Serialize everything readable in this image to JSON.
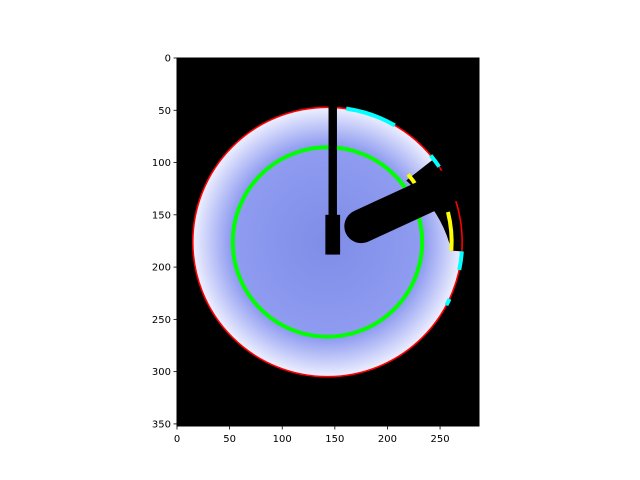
{
  "chart_data": {
    "type": "image",
    "title": "",
    "xlabel": "",
    "ylabel": "",
    "xlim": [
      0,
      287
    ],
    "ylim": [
      352,
      0
    ],
    "x_ticks": [
      0,
      50,
      100,
      150,
      200,
      250
    ],
    "y_ticks": [
      0,
      50,
      100,
      150,
      200,
      250,
      300,
      350
    ],
    "x_tick_labels": [
      "0",
      "50",
      "100",
      "150",
      "200",
      "250"
    ],
    "y_tick_labels": [
      "0",
      "50",
      "100",
      "150",
      "200",
      "250",
      "300",
      "350"
    ],
    "image_content": {
      "background": "black",
      "disk": {
        "cx": 143,
        "cy": 176,
        "r": 128,
        "fill": "#8f9cf0",
        "edge_fill": "#eef0ff"
      },
      "outer_circle": {
        "cx": 143,
        "cy": 176,
        "r": 128,
        "color": "#ff0000"
      },
      "inner_circle": {
        "cx": 143,
        "cy": 176,
        "r": 90,
        "color": "#00ff00"
      },
      "cutout_wedge": {
        "from_deg": -38,
        "to_deg": 4,
        "color": "#000000"
      },
      "cyan_arcs": [
        {
          "from_deg": -82,
          "to_deg": -60,
          "r": 128,
          "color": "#00ffff"
        },
        {
          "from_deg": -40,
          "to_deg": -34,
          "r": 128,
          "color": "#00ffff"
        },
        {
          "from_deg": 4,
          "to_deg": 12,
          "r": 128,
          "color": "#00ffff"
        },
        {
          "from_deg": 25,
          "to_deg": 28,
          "r": 128,
          "color": "#00ffff"
        }
      ],
      "yellow_arcs": [
        {
          "from_deg": -40,
          "to_deg": -22,
          "r": 100,
          "color": "#ffff00"
        },
        {
          "from_deg": -14,
          "to_deg": 4,
          "r": 118,
          "color": "#ffff00"
        }
      ],
      "vertical_bar": {
        "x": 148,
        "y_top": 45,
        "y_bottom": 188,
        "width": 8,
        "base_width": 14,
        "base_top": 150,
        "color": "#000000"
      },
      "arm": {
        "x1": 175,
        "y1": 161,
        "x2": 300,
        "y2": 103,
        "width": 32,
        "color": "#000000"
      }
    }
  }
}
